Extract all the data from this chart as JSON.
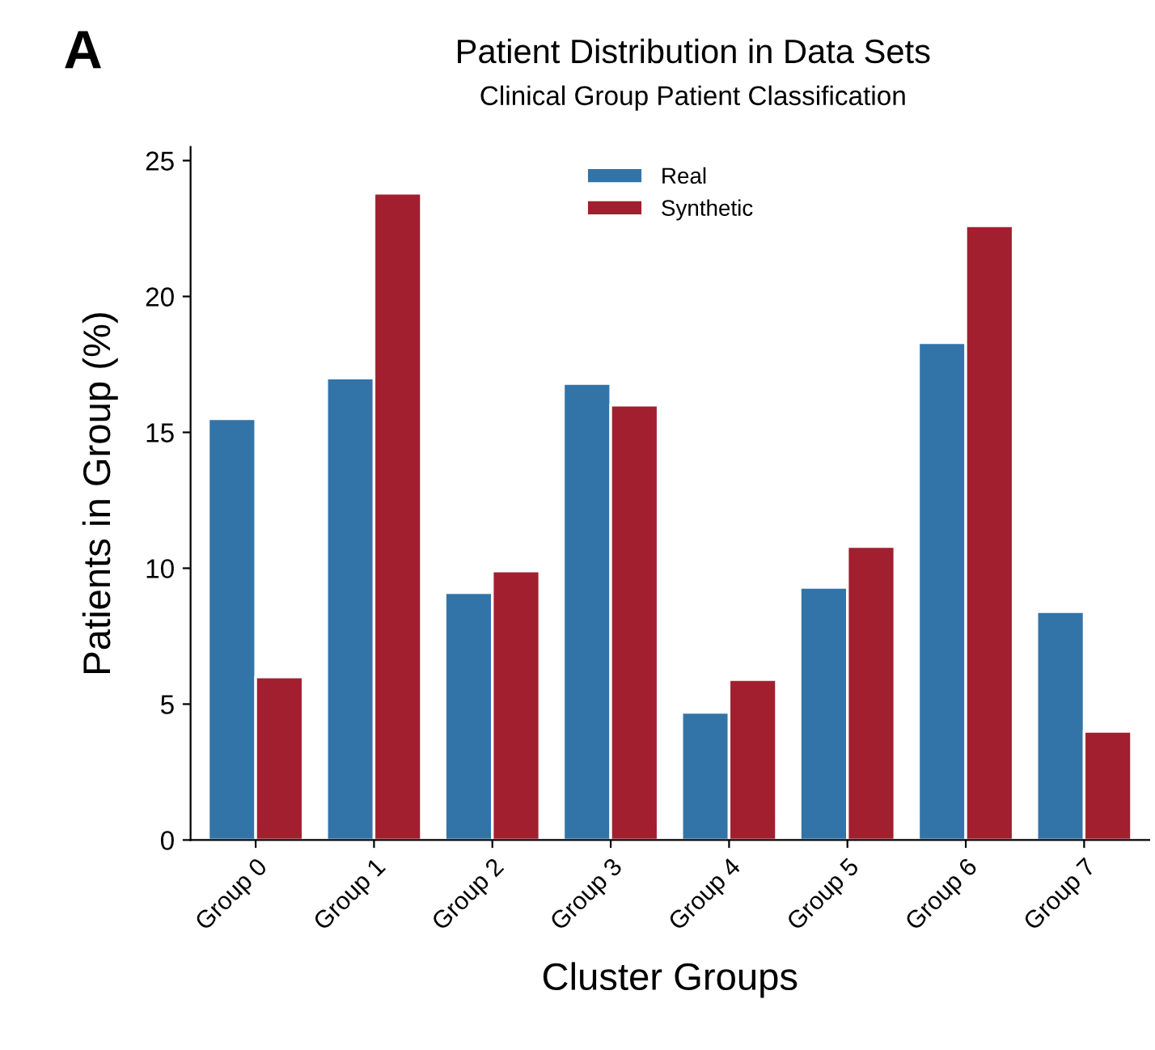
{
  "chart_data": {
    "type": "bar",
    "title": "Patient Distribution in Data Sets",
    "subtitle": "Clinical Group Patient Classification",
    "xlabel": "Cluster Groups",
    "ylabel": "Patients in Group (%)",
    "annotations": [
      "A"
    ],
    "categories": [
      "Group 0",
      "Group 1",
      "Group 2",
      "Group 3",
      "Group 4",
      "Group 5",
      "Group 6",
      "Group 7"
    ],
    "series": [
      {
        "name": "Real",
        "color": "#3274a8",
        "values": [
          15.5,
          17.0,
          9.1,
          16.8,
          4.7,
          9.3,
          18.3,
          8.4
        ]
      },
      {
        "name": "Synthetic",
        "color": "#a11f2f",
        "values": [
          6.0,
          23.8,
          9.9,
          16.0,
          5.9,
          10.8,
          22.6,
          4.0
        ]
      }
    ],
    "ylim": [
      0,
      25.5
    ],
    "yticks": [
      0,
      5,
      10,
      15,
      20,
      25
    ],
    "grid": false,
    "legend": "top"
  }
}
